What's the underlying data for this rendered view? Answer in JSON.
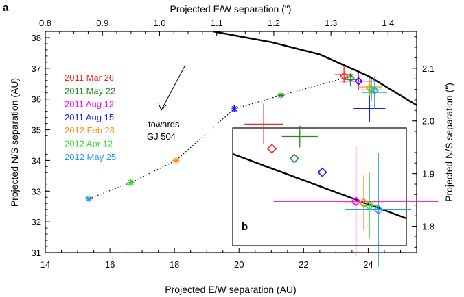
{
  "chart_data": [
    {
      "panel": "a",
      "type": "scatter",
      "xlabel": "Projected E/W separation (AU)",
      "ylabel": "Projected N/S separation (AU)",
      "x2label": "Projected E/W separation (\")",
      "y2label": "Projected N/S separation (\")",
      "xlim": [
        14,
        25.5
      ],
      "ylim": [
        31,
        38.2
      ],
      "x2lim": [
        0.8,
        1.45
      ],
      "y2lim": [
        1.75,
        2.17
      ],
      "xticks": [
        "14",
        "16",
        "18",
        "20",
        "22",
        "24"
      ],
      "yticks": [
        "31",
        "32",
        "33",
        "34",
        "35",
        "36",
        "37",
        "38"
      ],
      "x2ticks": [
        "0.8",
        "0.9",
        "1.0",
        "1.1",
        "1.2",
        "1.3",
        "1.4"
      ],
      "y2ticks": [
        "1.8",
        "1.9",
        "2.0",
        "2.1"
      ],
      "annotation": [
        "towards",
        "GJ 504"
      ],
      "series": [
        {
          "name": "2011 Mar 26",
          "color": "#ff2222",
          "x": 23.25,
          "y": 36.75
        },
        {
          "name": "2011 May 22",
          "color": "#228b22",
          "x": 23.45,
          "y": 36.68
        },
        {
          "name": "2011 Aug 12",
          "color": "#ff00ff",
          "x": 23.7,
          "y": 36.58
        },
        {
          "name": "2011 Aug 15",
          "color": "#1a1aff",
          "x": 23.7,
          "y": 36.58
        },
        {
          "name": "2012 Feb 28",
          "color": "#ff8c1a",
          "x": 24.05,
          "y": 36.35
        },
        {
          "name": "2012 Apr 12",
          "color": "#33dd33",
          "x": 24.1,
          "y": 36.3
        },
        {
          "name": "2012 May 25",
          "color": "#2299ee",
          "x": 24.2,
          "y": 36.28
        }
      ],
      "background_track": [
        {
          "color": "#2299ee",
          "x": 15.35,
          "y": 32.75
        },
        {
          "color": "#33dd33",
          "x": 16.65,
          "y": 33.28
        },
        {
          "color": "#ff8c1a",
          "x": 18.05,
          "y": 34.0
        },
        {
          "color": "#1a1aff",
          "x": 19.85,
          "y": 35.68
        },
        {
          "color": "#228b22",
          "x": 21.3,
          "y": 36.12
        }
      ],
      "orbit_line": [
        [
          19.2,
          38.2
        ],
        [
          21,
          37.85
        ],
        [
          22.5,
          37.45
        ],
        [
          24,
          36.75
        ],
        [
          25.5,
          35.8
        ]
      ]
    },
    {
      "panel": "b",
      "type": "scatter",
      "points": [
        {
          "name": "2011 Mar 26",
          "color": "#ff2222",
          "x": 23.25,
          "y": 36.75
        },
        {
          "name": "2011 May 22",
          "color": "#228b22",
          "x": 23.45,
          "y": 36.68
        },
        {
          "name": "2011 Aug 15",
          "color": "#1a1aff",
          "x": 23.7,
          "y": 36.58
        },
        {
          "name": "2011 Aug 12",
          "color": "#ff00ff",
          "x": 24.0,
          "y": 36.37
        },
        {
          "name": "2012 Feb 28",
          "color": "#ff8c1a",
          "x": 24.07,
          "y": 36.36
        },
        {
          "name": "2012 Apr 12",
          "color": "#33dd33",
          "x": 24.12,
          "y": 36.34
        },
        {
          "name": "2012 May 25",
          "color": "#2299ee",
          "x": 24.2,
          "y": 36.31
        }
      ]
    }
  ]
}
